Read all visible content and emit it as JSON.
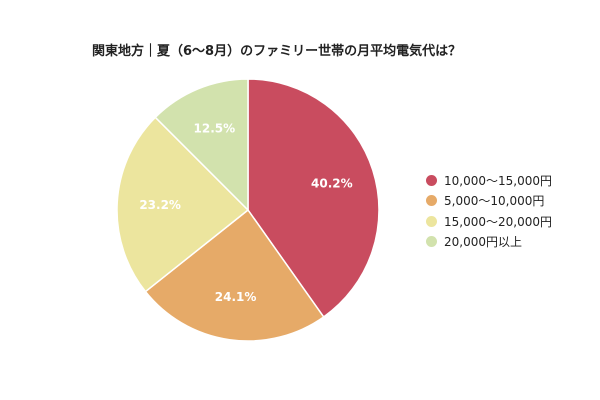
{
  "chart_data": {
    "type": "pie",
    "title": "関東地方｜夏（6〜8月）のファミリー世帯の月平均電気代は？",
    "categories": [
      "10,000〜15,000円",
      "5,000〜10,000円",
      "15,000〜20,000円",
      "20,000円以上"
    ],
    "values": [
      40.2,
      24.1,
      23.2,
      12.5
    ],
    "data_labels": [
      "40.2%",
      "24.1%",
      "23.2%",
      "12.5%"
    ],
    "colors": [
      "#c94c5f",
      "#e6aa68",
      "#ece59e",
      "#d2e2ad"
    ],
    "start_angle": "12 o'clock",
    "direction": "clockwise",
    "legend_position": "right"
  }
}
